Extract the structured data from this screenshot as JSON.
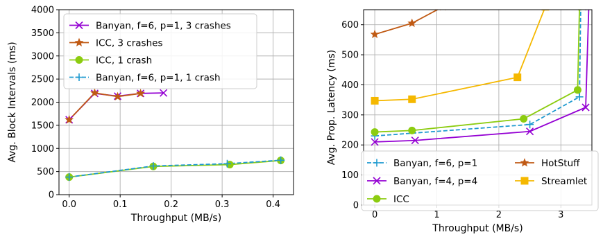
{
  "chart_data": [
    {
      "type": "line",
      "xlabel": "Throughput (MB/s)",
      "ylabel": "Avg. Block Intervals (ms)",
      "xlim": [
        -0.02,
        0.44
      ],
      "ylim": [
        0,
        4000
      ],
      "xticks": [
        0.0,
        0.1,
        0.2,
        0.3,
        0.4
      ],
      "xtick_labels": [
        "0.0",
        "0.1",
        "0.2",
        "0.3",
        "0.4"
      ],
      "yticks": [
        0,
        500,
        1000,
        1500,
        2000,
        2500,
        3000,
        3500,
        4000
      ],
      "ytick_labels": [
        "0",
        "500",
        "1000",
        "1500",
        "2000",
        "2500",
        "3000",
        "3500",
        "4000"
      ],
      "grid": true,
      "legend_position": "top-left",
      "legend_columns": 1,
      "series": [
        {
          "name": "Banyan, f=6, p=1, 3 crashes",
          "color": "#9400d3",
          "marker": "x",
          "dashed": false,
          "x": [
            0.0,
            0.05,
            0.095,
            0.14,
            0.185
          ],
          "y": [
            1620,
            2190,
            2130,
            2190,
            2200
          ]
        },
        {
          "name": "ICC, 3 crashes",
          "color": "#c05a14",
          "marker": "star",
          "dashed": false,
          "x": [
            0.0,
            0.05,
            0.095,
            0.14
          ],
          "y": [
            1620,
            2200,
            2120,
            2190
          ]
        },
        {
          "name": "ICC, 1 crash",
          "color": "#8ccc10",
          "marker": "circle",
          "dashed": false,
          "x": [
            0.0,
            0.165,
            0.315,
            0.415
          ],
          "y": [
            380,
            610,
            650,
            740
          ]
        },
        {
          "name": "Banyan, f=6, p=1, 1 crash",
          "color": "#1f9ad0",
          "marker": "plus",
          "dashed": true,
          "x": [
            0.0,
            0.165,
            0.31,
            0.415
          ],
          "y": [
            380,
            620,
            670,
            745
          ]
        }
      ]
    },
    {
      "type": "line",
      "xlabel": "Throughput (MB/s)",
      "ylabel": "Avg. Prop. Latency (ms)",
      "xlim": [
        -0.18,
        3.5
      ],
      "ylim": [
        0,
        650
      ],
      "xticks": [
        0,
        1,
        2,
        3
      ],
      "xtick_labels": [
        "0",
        "1",
        "2",
        "3"
      ],
      "yticks": [
        0,
        100,
        200,
        300,
        400,
        500,
        600
      ],
      "ytick_labels": [
        "0",
        "100",
        "200",
        "300",
        "400",
        "500",
        "600"
      ],
      "grid": true,
      "legend_position": "bottom-right",
      "legend_columns": 2,
      "series": [
        {
          "name": "Banyan, f=6, p=1",
          "color": "#1f9ad0",
          "marker": "plus",
          "dashed": true,
          "x": [
            0.0,
            2.5,
            3.3,
            3.32
          ],
          "y": [
            230,
            268,
            360,
            660
          ]
        },
        {
          "name": "Banyan, f=4, p=4",
          "color": "#9400d3",
          "marker": "x",
          "dashed": false,
          "x": [
            0.0,
            0.65,
            2.5,
            3.4,
            3.45
          ],
          "y": [
            210,
            215,
            245,
            325,
            660
          ]
        },
        {
          "name": "ICC",
          "color": "#8ccc10",
          "marker": "circle",
          "dashed": false,
          "x": [
            0.0,
            0.6,
            2.4,
            3.27,
            3.3
          ],
          "y": [
            243,
            248,
            287,
            383,
            660
          ]
        },
        {
          "name": "HotStuff",
          "color": "#c05a14",
          "marker": "star",
          "dashed": false,
          "x": [
            0.0,
            0.6,
            1.1
          ],
          "y": [
            568,
            605,
            660
          ]
        },
        {
          "name": "Streamlet",
          "color": "#f5b800",
          "marker": "square",
          "dashed": false,
          "x": [
            0.0,
            0.6,
            2.3,
            2.75
          ],
          "y": [
            347,
            352,
            425,
            660
          ]
        }
      ]
    }
  ]
}
